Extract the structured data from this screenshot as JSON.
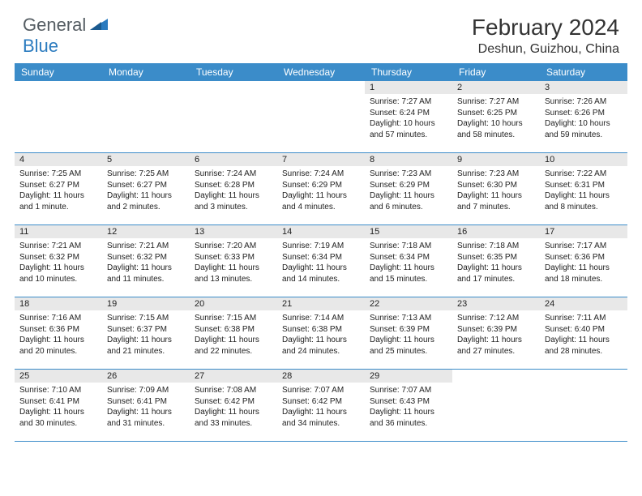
{
  "logo": {
    "general": "General",
    "blue": "Blue"
  },
  "title": "February 2024",
  "location": "Deshun, Guizhou, China",
  "colors": {
    "header_bar": "#3b8cc9",
    "day_bar": "#e8e8e8",
    "border": "#3b8cc9",
    "text": "#222222",
    "logo_gray": "#555d63",
    "logo_blue": "#2b7bbf",
    "background": "#ffffff"
  },
  "typography": {
    "title_fontsize": 28,
    "location_fontsize": 16,
    "weekday_fontsize": 12,
    "daynum_fontsize": 11,
    "body_fontsize": 10
  },
  "weekdays": [
    "Sunday",
    "Monday",
    "Tuesday",
    "Wednesday",
    "Thursday",
    "Friday",
    "Saturday"
  ],
  "weeks": [
    [
      null,
      null,
      null,
      null,
      {
        "n": "1",
        "sunrise": "Sunrise: 7:27 AM",
        "sunset": "Sunset: 6:24 PM",
        "daylight": "Daylight: 10 hours and 57 minutes."
      },
      {
        "n": "2",
        "sunrise": "Sunrise: 7:27 AM",
        "sunset": "Sunset: 6:25 PM",
        "daylight": "Daylight: 10 hours and 58 minutes."
      },
      {
        "n": "3",
        "sunrise": "Sunrise: 7:26 AM",
        "sunset": "Sunset: 6:26 PM",
        "daylight": "Daylight: 10 hours and 59 minutes."
      }
    ],
    [
      {
        "n": "4",
        "sunrise": "Sunrise: 7:25 AM",
        "sunset": "Sunset: 6:27 PM",
        "daylight": "Daylight: 11 hours and 1 minute."
      },
      {
        "n": "5",
        "sunrise": "Sunrise: 7:25 AM",
        "sunset": "Sunset: 6:27 PM",
        "daylight": "Daylight: 11 hours and 2 minutes."
      },
      {
        "n": "6",
        "sunrise": "Sunrise: 7:24 AM",
        "sunset": "Sunset: 6:28 PM",
        "daylight": "Daylight: 11 hours and 3 minutes."
      },
      {
        "n": "7",
        "sunrise": "Sunrise: 7:24 AM",
        "sunset": "Sunset: 6:29 PM",
        "daylight": "Daylight: 11 hours and 4 minutes."
      },
      {
        "n": "8",
        "sunrise": "Sunrise: 7:23 AM",
        "sunset": "Sunset: 6:29 PM",
        "daylight": "Daylight: 11 hours and 6 minutes."
      },
      {
        "n": "9",
        "sunrise": "Sunrise: 7:23 AM",
        "sunset": "Sunset: 6:30 PM",
        "daylight": "Daylight: 11 hours and 7 minutes."
      },
      {
        "n": "10",
        "sunrise": "Sunrise: 7:22 AM",
        "sunset": "Sunset: 6:31 PM",
        "daylight": "Daylight: 11 hours and 8 minutes."
      }
    ],
    [
      {
        "n": "11",
        "sunrise": "Sunrise: 7:21 AM",
        "sunset": "Sunset: 6:32 PM",
        "daylight": "Daylight: 11 hours and 10 minutes."
      },
      {
        "n": "12",
        "sunrise": "Sunrise: 7:21 AM",
        "sunset": "Sunset: 6:32 PM",
        "daylight": "Daylight: 11 hours and 11 minutes."
      },
      {
        "n": "13",
        "sunrise": "Sunrise: 7:20 AM",
        "sunset": "Sunset: 6:33 PM",
        "daylight": "Daylight: 11 hours and 13 minutes."
      },
      {
        "n": "14",
        "sunrise": "Sunrise: 7:19 AM",
        "sunset": "Sunset: 6:34 PM",
        "daylight": "Daylight: 11 hours and 14 minutes."
      },
      {
        "n": "15",
        "sunrise": "Sunrise: 7:18 AM",
        "sunset": "Sunset: 6:34 PM",
        "daylight": "Daylight: 11 hours and 15 minutes."
      },
      {
        "n": "16",
        "sunrise": "Sunrise: 7:18 AM",
        "sunset": "Sunset: 6:35 PM",
        "daylight": "Daylight: 11 hours and 17 minutes."
      },
      {
        "n": "17",
        "sunrise": "Sunrise: 7:17 AM",
        "sunset": "Sunset: 6:36 PM",
        "daylight": "Daylight: 11 hours and 18 minutes."
      }
    ],
    [
      {
        "n": "18",
        "sunrise": "Sunrise: 7:16 AM",
        "sunset": "Sunset: 6:36 PM",
        "daylight": "Daylight: 11 hours and 20 minutes."
      },
      {
        "n": "19",
        "sunrise": "Sunrise: 7:15 AM",
        "sunset": "Sunset: 6:37 PM",
        "daylight": "Daylight: 11 hours and 21 minutes."
      },
      {
        "n": "20",
        "sunrise": "Sunrise: 7:15 AM",
        "sunset": "Sunset: 6:38 PM",
        "daylight": "Daylight: 11 hours and 22 minutes."
      },
      {
        "n": "21",
        "sunrise": "Sunrise: 7:14 AM",
        "sunset": "Sunset: 6:38 PM",
        "daylight": "Daylight: 11 hours and 24 minutes."
      },
      {
        "n": "22",
        "sunrise": "Sunrise: 7:13 AM",
        "sunset": "Sunset: 6:39 PM",
        "daylight": "Daylight: 11 hours and 25 minutes."
      },
      {
        "n": "23",
        "sunrise": "Sunrise: 7:12 AM",
        "sunset": "Sunset: 6:39 PM",
        "daylight": "Daylight: 11 hours and 27 minutes."
      },
      {
        "n": "24",
        "sunrise": "Sunrise: 7:11 AM",
        "sunset": "Sunset: 6:40 PM",
        "daylight": "Daylight: 11 hours and 28 minutes."
      }
    ],
    [
      {
        "n": "25",
        "sunrise": "Sunrise: 7:10 AM",
        "sunset": "Sunset: 6:41 PM",
        "daylight": "Daylight: 11 hours and 30 minutes."
      },
      {
        "n": "26",
        "sunrise": "Sunrise: 7:09 AM",
        "sunset": "Sunset: 6:41 PM",
        "daylight": "Daylight: 11 hours and 31 minutes."
      },
      {
        "n": "27",
        "sunrise": "Sunrise: 7:08 AM",
        "sunset": "Sunset: 6:42 PM",
        "daylight": "Daylight: 11 hours and 33 minutes."
      },
      {
        "n": "28",
        "sunrise": "Sunrise: 7:07 AM",
        "sunset": "Sunset: 6:42 PM",
        "daylight": "Daylight: 11 hours and 34 minutes."
      },
      {
        "n": "29",
        "sunrise": "Sunrise: 7:07 AM",
        "sunset": "Sunset: 6:43 PM",
        "daylight": "Daylight: 11 hours and 36 minutes."
      },
      null,
      null
    ]
  ]
}
